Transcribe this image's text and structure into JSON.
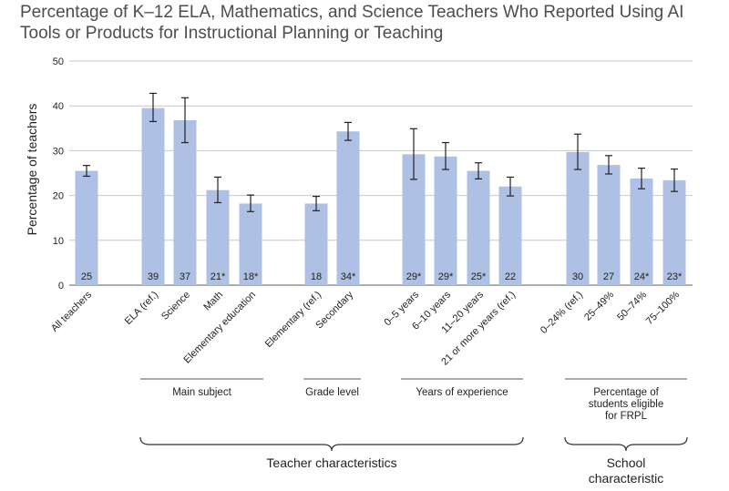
{
  "chart_data": {
    "type": "bar",
    "title": "Percentage of K–12 ELA, Mathematics, and Science Teachers Who Reported Using AI Tools or Products for Instructional Planning or Teaching",
    "ylabel": "Percentage of teachers",
    "ylim": [
      0,
      50
    ],
    "yticks": [
      0,
      10,
      20,
      30,
      40,
      50
    ],
    "grid": true,
    "bar_color": "#aec0e4",
    "categories": [
      "All teachers",
      "ELA (ref.)",
      "Science",
      "Math",
      "Elementary education",
      "Elementary (ref.)",
      "Secondary",
      "0–5 years",
      "6–10 years",
      "11–20 years",
      "21 or more years (ref.)",
      "0–24% (ref.)",
      "25–49%",
      "50–74%",
      "75–100%"
    ],
    "values": [
      25.5,
      39.5,
      36.8,
      21.2,
      18.2,
      18.2,
      34.3,
      29.2,
      28.7,
      25.5,
      22.0,
      29.7,
      26.8,
      23.8,
      23.4
    ],
    "error_low": [
      24.3,
      36.5,
      31.8,
      18.4,
      16.4,
      16.6,
      32.3,
      23.6,
      25.8,
      23.7,
      19.9,
      25.8,
      24.8,
      21.5,
      20.9
    ],
    "error_high": [
      26.7,
      42.8,
      41.8,
      24.1,
      20.1,
      19.8,
      36.3,
      34.9,
      31.8,
      27.3,
      24.1,
      33.7,
      28.9,
      26.1,
      25.9
    ],
    "data_labels": [
      "25",
      "39",
      "37",
      "21*",
      "18*",
      "18",
      "34*",
      "29*",
      "29*",
      "25*",
      "22",
      "30",
      "27",
      "24*",
      "23*"
    ],
    "groups": [
      {
        "label": "Main subject",
        "start": 1,
        "end": 4
      },
      {
        "label": "Grade level",
        "start": 5,
        "end": 6
      },
      {
        "label": "Years of experience",
        "start": 7,
        "end": 10
      },
      {
        "label": "Percentage of students eligible for FRPL",
        "lines": [
          "Percentage of",
          "students eligible",
          "for FRPL"
        ],
        "start": 11,
        "end": 14
      }
    ],
    "super_groups": [
      {
        "label": "Teacher characteristics",
        "lines": [
          "Teacher characteristics"
        ],
        "start": 1,
        "end": 10
      },
      {
        "label": "School characteristic",
        "lines": [
          "School",
          "characteristic"
        ],
        "start": 11,
        "end": 14
      }
    ]
  }
}
